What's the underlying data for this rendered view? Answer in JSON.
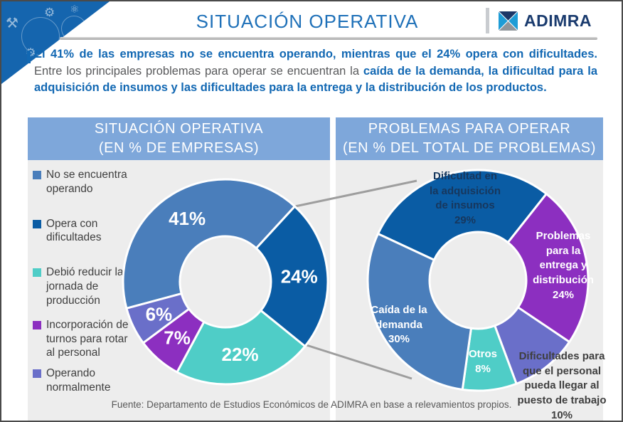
{
  "header": {
    "title": "SITUACIÓN OPERATIVA",
    "logo_text": "ADIMRA"
  },
  "decor": {
    "icons": [
      {
        "name": "tools-icon",
        "glyph": "⚒"
      },
      {
        "name": "gear-icon",
        "glyph": "⚙"
      },
      {
        "name": "atom-icon",
        "glyph": "⚛"
      },
      {
        "name": "gear-icon-2",
        "glyph": "⚙"
      }
    ]
  },
  "colors": {
    "accent_blue": "#1268B3",
    "title_blue": "#1E70B8",
    "panel_header_blue": "#7EA7DA",
    "panel_bg": "#EDEDED",
    "text_gray": "#58595B",
    "connector_gray": "#9E9E9E",
    "logo_top": "#1C3667",
    "logo_left": "#1E9CD6",
    "logo_right": "#1E9CD6",
    "logo_bottom": "#8F959B"
  },
  "intro": {
    "bold_lead": "El 41% de las empresas no se encuentra operando, mientras que el 24% opera con dificultades. ",
    "regular": "Entre los principales problemas para operar se encuentran la ",
    "bold_tail": "caída de la demanda, la dificultad para la adquisición de insumos y las dificultades para la entrega y la distribución de los productos."
  },
  "panels": {
    "left_header_line1": "SITUACIÓN OPERATIVA",
    "left_header_line2": "(EN % DE EMPRESAS)",
    "right_header_line1": "PROBLEMAS PARA OPERAR",
    "right_header_line2": "(EN % DEL TOTAL DE PROBLEMAS)"
  },
  "legend": {
    "items": [
      {
        "label": "No se encuentra operando",
        "color": "#4A7EBB"
      },
      {
        "label": "Opera con dificultades",
        "color": "#0A5CA4"
      },
      {
        "label": "Debió reducir la jornada de producción",
        "color": "#4FCDC7"
      },
      {
        "label": "Incorporación de turnos para rotar al personal",
        "color": "#8C2FC0"
      },
      {
        "label": "Operando normalmente",
        "color": "#6A6FC9"
      }
    ]
  },
  "chart_data": [
    {
      "type": "donut",
      "title": "SITUACIÓN OPERATIVA (EN % DE EMPRESAS)",
      "unit": "% de empresas",
      "start_angle": 255,
      "legend_position": "left",
      "slices": [
        {
          "id": "no-opera",
          "label": "No se encuentra operando",
          "value": 41,
          "pct_label": "41%",
          "color": "#4A7EBB"
        },
        {
          "id": "con-dificultades",
          "label": "Opera con dificultades",
          "value": 24,
          "pct_label": "24%",
          "color": "#0A5CA4"
        },
        {
          "id": "reduce-jornada",
          "label": "Debió reducir la jornada de producción",
          "value": 22,
          "pct_label": "22%",
          "color": "#4FCDC7"
        },
        {
          "id": "turnos-rotar",
          "label": "Incorporación de turnos para rotar al personal",
          "value": 7,
          "pct_label": "7%",
          "color": "#8C2FC0"
        },
        {
          "id": "normalmente",
          "label": "Operando normalmente",
          "value": 6,
          "pct_label": "6%",
          "color": "#6A6FC9"
        }
      ]
    },
    {
      "type": "donut",
      "title": "PROBLEMAS PARA OPERAR (EN % DEL TOTAL DE PROBLEMAS)",
      "unit": "% del total de problemas",
      "start_angle": 295,
      "slices": [
        {
          "id": "insumos",
          "label": "Dificultad en la adquisición de insumos",
          "value": 29,
          "color": "#0A5CA4",
          "label_lines": [
            "Dificultad en",
            "la adquisición",
            "de insumos",
            "29%"
          ]
        },
        {
          "id": "entrega",
          "label": "Problemas para la entrega y distribución",
          "value": 24,
          "color": "#8C2FC0",
          "label_lines": [
            "Problemas",
            "para la",
            "entrega y",
            "distribución",
            "24%"
          ]
        },
        {
          "id": "personal",
          "label": "Dificultades para que el personal pueda llegar al puesto de trabajo",
          "value": 10,
          "color": "#6A6FC9",
          "label_lines": [
            "Dificultades para",
            "que el personal",
            "pueda llegar al",
            "puesto de trabajo",
            "10%"
          ]
        },
        {
          "id": "otros",
          "label": "Otros",
          "value": 8,
          "color": "#4FCDC7",
          "label_lines": [
            "Otros",
            "8%"
          ]
        },
        {
          "id": "demanda",
          "label": "Caída de la demanda",
          "value": 30,
          "color": "#4A7EBB",
          "label_lines": [
            "Caída de la",
            "demanda",
            "30%"
          ]
        }
      ]
    }
  ],
  "footer": {
    "source": "Fuente: Departamento de Estudios Económicos de ADIMRA en base a relevamientos propios."
  }
}
